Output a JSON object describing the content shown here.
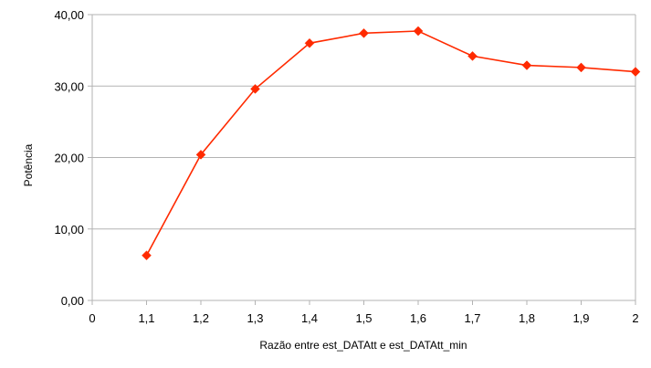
{
  "chart_data": {
    "type": "line",
    "title": "",
    "xlabel": "Razão entre est_DATAtt e est_DATAtt_min",
    "ylabel": "Potência",
    "x_ticks": [
      "0",
      "1,1",
      "1,2",
      "1,3",
      "1,4",
      "1,5",
      "1,6",
      "1,7",
      "1,8",
      "1,9",
      "2"
    ],
    "y_ticks": [
      "0,00",
      "10,00",
      "20,00",
      "30,00",
      "40,00"
    ],
    "ylim": [
      0,
      40
    ],
    "grid": "horizontal",
    "legend": "none",
    "series": [
      {
        "color": "#ff2a00",
        "marker": "diamond",
        "x": [
          "1,1",
          "1,2",
          "1,3",
          "1,4",
          "1,5",
          "1,6",
          "1,7",
          "1,8",
          "1,9",
          "2"
        ],
        "values": [
          6.3,
          20.4,
          29.6,
          36.0,
          37.4,
          37.7,
          34.2,
          32.9,
          32.6,
          32.0
        ]
      }
    ],
    "colors": {
      "gridline": "#b3b3b3",
      "axis": "#b3b3b3",
      "line": "#ff2a00"
    }
  }
}
